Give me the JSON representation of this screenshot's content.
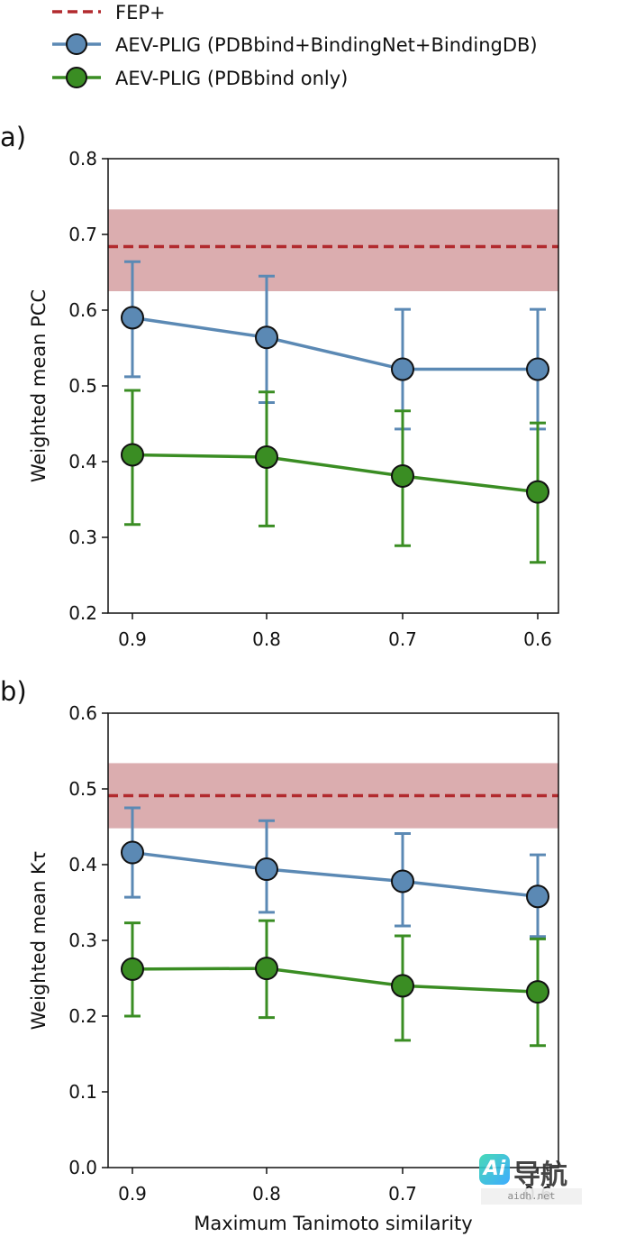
{
  "legend": {
    "fep": "FEP+",
    "combined": "AEV-PLIG (PDBbind+BindingNet+BindingDB)",
    "pdbbind_only": "AEV-PLIG (PDBbind only)"
  },
  "colors": {
    "fep_line": "#b22a2e",
    "fep_band": "#dbadaf",
    "combined": "#5b89b4",
    "pdbbind_only": "#3a8d23",
    "marker_edge": "#111111"
  },
  "chart_data": [
    {
      "type": "line",
      "panel_label": "a)",
      "title": "",
      "xlabel": "",
      "ylabel": "Weighted mean PCC",
      "categories": [
        "0.9",
        "0.8",
        "0.7",
        "0.6"
      ],
      "ylim": [
        0.2,
        0.8
      ],
      "yticks": [
        "0.2",
        "0.3",
        "0.4",
        "0.5",
        "0.6",
        "0.7",
        "0.8"
      ],
      "reference": {
        "name": "FEP+",
        "value": 0.684,
        "band": [
          0.625,
          0.733
        ]
      },
      "series": [
        {
          "name": "AEV-PLIG (PDBbind+BindingNet+BindingDB)",
          "values": [
            0.59,
            0.564,
            0.522,
            0.522
          ],
          "err_low": [
            0.512,
            0.478,
            0.443,
            0.443
          ],
          "err_high": [
            0.664,
            0.645,
            0.601,
            0.601
          ]
        },
        {
          "name": "AEV-PLIG (PDBbind only)",
          "values": [
            0.409,
            0.406,
            0.381,
            0.36
          ],
          "err_low": [
            0.317,
            0.315,
            0.289,
            0.267
          ],
          "err_high": [
            0.494,
            0.492,
            0.467,
            0.451
          ]
        }
      ]
    },
    {
      "type": "line",
      "panel_label": "b)",
      "title": "",
      "xlabel": "Maximum Tanimoto similarity",
      "ylabel": "Weighted mean Kτ",
      "categories": [
        "0.9",
        "0.8",
        "0.7",
        "0.6"
      ],
      "ylim": [
        0.0,
        0.6
      ],
      "yticks": [
        "0.0",
        "0.1",
        "0.2",
        "0.3",
        "0.4",
        "0.5",
        "0.6"
      ],
      "reference": {
        "name": "FEP+",
        "value": 0.491,
        "band": [
          0.448,
          0.534
        ]
      },
      "series": [
        {
          "name": "AEV-PLIG (PDBbind+BindingNet+BindingDB)",
          "values": [
            0.416,
            0.394,
            0.378,
            0.358
          ],
          "err_low": [
            0.357,
            0.337,
            0.319,
            0.305
          ],
          "err_high": [
            0.475,
            0.458,
            0.441,
            0.413
          ]
        },
        {
          "name": "AEV-PLIG (PDBbind only)",
          "values": [
            0.262,
            0.263,
            0.24,
            0.232
          ],
          "err_low": [
            0.2,
            0.198,
            0.168,
            0.161
          ],
          "err_high": [
            0.323,
            0.326,
            0.306,
            0.302
          ]
        }
      ]
    }
  ],
  "watermark": {
    "logo": "Ai",
    "title": "导航",
    "url": "aidh.net"
  }
}
